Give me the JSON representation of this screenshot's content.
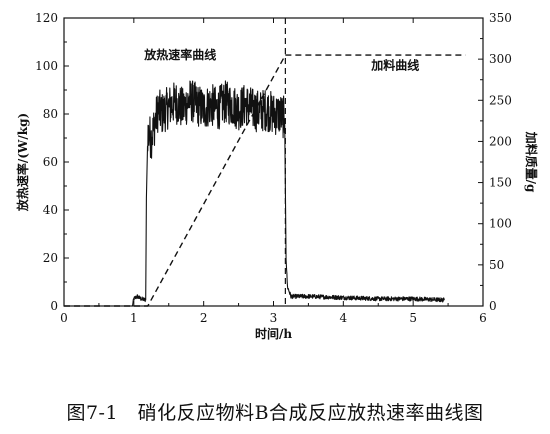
{
  "caption": "图7-1　硝化反应物料B合成反应放热速率曲线图",
  "chart_data": {
    "type": "line",
    "title": "",
    "xlabel": "时间/h",
    "ylabel_left": "放热速率/(W/kg)",
    "ylabel_right": "加料质量/g",
    "xlim": [
      0,
      6
    ],
    "ylim_left": [
      0,
      120
    ],
    "ylim_right": [
      0,
      350
    ],
    "x_ticks": [
      "0",
      "1",
      "2",
      "3",
      "4",
      "5",
      "6"
    ],
    "y_left_ticks": [
      "0",
      "20",
      "40",
      "60",
      "80",
      "100",
      "120"
    ],
    "y_right_ticks": [
      "0",
      "50",
      "100",
      "150",
      "200",
      "250",
      "300",
      "350"
    ],
    "grid": false,
    "vertical_marker_x": 3.17,
    "series": [
      {
        "name": "放热速率曲线",
        "axis": "left",
        "style": "solid",
        "points": [
          [
            0.98,
            0.0
          ],
          [
            1.0,
            3.0
          ],
          [
            1.05,
            4.0
          ],
          [
            1.1,
            3.0
          ],
          [
            1.17,
            2.5
          ],
          [
            1.18,
            45
          ],
          [
            1.2,
            72
          ],
          [
            1.25,
            70
          ],
          [
            1.3,
            76
          ],
          [
            1.35,
            82
          ],
          [
            1.4,
            80
          ],
          [
            1.5,
            83
          ],
          [
            1.6,
            85
          ],
          [
            1.7,
            82
          ],
          [
            1.8,
            86
          ],
          [
            1.9,
            84
          ],
          [
            2.0,
            82
          ],
          [
            2.1,
            84
          ],
          [
            2.2,
            82
          ],
          [
            2.3,
            85
          ],
          [
            2.4,
            84
          ],
          [
            2.5,
            82
          ],
          [
            2.6,
            84
          ],
          [
            2.7,
            82
          ],
          [
            2.8,
            81
          ],
          [
            2.9,
            82
          ],
          [
            3.0,
            80
          ],
          [
            3.1,
            80
          ],
          [
            3.16,
            78
          ],
          [
            3.18,
            20
          ],
          [
            3.2,
            8
          ],
          [
            3.25,
            4
          ],
          [
            3.5,
            4
          ],
          [
            4.0,
            3.5
          ],
          [
            4.5,
            3.0
          ],
          [
            5.0,
            3.0
          ],
          [
            5.45,
            2.5
          ]
        ]
      },
      {
        "name": "加料曲线",
        "axis": "right",
        "style": "dashed",
        "points": [
          [
            0.0,
            0
          ],
          [
            1.0,
            0
          ],
          [
            1.2,
            0
          ],
          [
            3.17,
            305
          ],
          [
            5.75,
            305
          ]
        ]
      }
    ],
    "annotations": [
      "放热速率曲线",
      "加料曲线"
    ]
  }
}
